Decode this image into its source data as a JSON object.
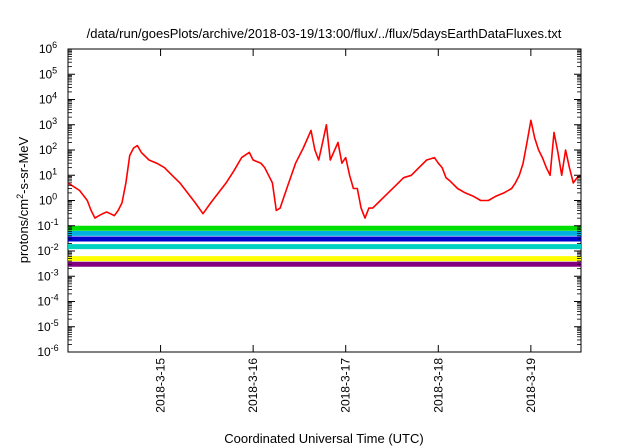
{
  "chart_data": {
    "type": "line",
    "title": "/data/run/goesPlots/archive/2018-03-19/13:00/flux/../flux/5daysEarthDataFluxes.txt",
    "xlabel": "Coordinated Universal Time (UTC)",
    "ylabel": {
      "base": "protons/cm",
      "sup": "2",
      "rest": "-s-sr-MeV"
    },
    "y_scale": "log",
    "ylim": [
      1e-06,
      1000000.0
    ],
    "y_ticks": [
      {
        "value": 1e-06,
        "exp": "-6"
      },
      {
        "value": 1e-05,
        "exp": "-5"
      },
      {
        "value": 0.0001,
        "exp": "-4"
      },
      {
        "value": 0.001,
        "exp": "-3"
      },
      {
        "value": 0.01,
        "exp": "-2"
      },
      {
        "value": 0.1,
        "exp": "-1"
      },
      {
        "value": 1,
        "exp": "0"
      },
      {
        "value": 10,
        "exp": "1"
      },
      {
        "value": 100,
        "exp": "2"
      },
      {
        "value": 1000,
        "exp": "3"
      },
      {
        "value": 10000,
        "exp": "4"
      },
      {
        "value": 100000,
        "exp": "5"
      },
      {
        "value": 1000000,
        "exp": "6"
      }
    ],
    "xlim": [
      "2018-03-14 00:00",
      "2018-03-19 13:00"
    ],
    "x_ticks": [
      "2018-3-15",
      "2018-3-16",
      "2018-3-17",
      "2018-3-18",
      "2018-3-19"
    ],
    "grid": false,
    "series": [
      {
        "color": "#ff0000",
        "x": [
          "2018-03-14 00:00",
          "2018-03-14 03:00",
          "2018-03-14 05:00",
          "2018-03-14 06:00",
          "2018-03-14 07:00",
          "2018-03-14 08:00",
          "2018-03-14 09:00",
          "2018-03-14 10:00",
          "2018-03-14 11:00",
          "2018-03-14 12:00",
          "2018-03-14 13:00",
          "2018-03-14 14:00",
          "2018-03-14 15:00",
          "2018-03-14 16:00",
          "2018-03-14 17:00",
          "2018-03-14 18:00",
          "2018-03-14 19:00",
          "2018-03-14 21:00",
          "2018-03-14 23:00",
          "2018-03-15 01:00",
          "2018-03-15 03:00",
          "2018-03-15 05:00",
          "2018-03-15 07:00",
          "2018-03-15 09:00",
          "2018-03-15 11:00",
          "2018-03-15 13:00",
          "2018-03-15 15:00",
          "2018-03-15 17:00",
          "2018-03-15 19:00",
          "2018-03-15 21:00",
          "2018-03-15 23:00",
          "2018-03-16 00:00",
          "2018-03-16 02:00",
          "2018-03-16 03:00",
          "2018-03-16 04:00",
          "2018-03-16 05:00",
          "2018-03-16 06:00",
          "2018-03-16 07:00",
          "2018-03-16 09:00",
          "2018-03-16 11:00",
          "2018-03-16 13:00",
          "2018-03-16 15:00",
          "2018-03-16 16:00",
          "2018-03-16 17:00",
          "2018-03-16 18:00",
          "2018-03-16 19:00",
          "2018-03-16 20:00",
          "2018-03-16 22:00",
          "2018-03-16 23:00",
          "2018-03-17 00:00",
          "2018-03-17 01:00",
          "2018-03-17 02:00",
          "2018-03-17 03:00",
          "2018-03-17 04:00",
          "2018-03-17 05:00",
          "2018-03-17 06:00",
          "2018-03-17 07:00",
          "2018-03-17 09:00",
          "2018-03-17 11:00",
          "2018-03-17 13:00",
          "2018-03-17 15:00",
          "2018-03-17 17:00",
          "2018-03-17 19:00",
          "2018-03-17 21:00",
          "2018-03-17 23:00",
          "2018-03-18 00:00",
          "2018-03-18 01:00",
          "2018-03-18 02:00",
          "2018-03-18 03:00",
          "2018-03-18 05:00",
          "2018-03-18 07:00",
          "2018-03-18 09:00",
          "2018-03-18 11:00",
          "2018-03-18 13:00",
          "2018-03-18 15:00",
          "2018-03-18 17:00",
          "2018-03-18 19:00",
          "2018-03-18 20:00",
          "2018-03-18 21:00",
          "2018-03-18 22:00",
          "2018-03-18 23:00",
          "2018-03-19 00:00",
          "2018-03-19 01:00",
          "2018-03-19 02:00",
          "2018-03-19 03:00",
          "2018-03-19 04:00",
          "2018-03-19 05:00",
          "2018-03-19 06:00",
          "2018-03-19 07:00",
          "2018-03-19 08:00",
          "2018-03-19 09:00",
          "2018-03-19 10:00",
          "2018-03-19 11:00",
          "2018-03-19 12:00",
          "2018-03-19 13:00"
        ],
        "y": [
          5,
          2.5,
          1,
          0.4,
          0.2,
          0.25,
          0.3,
          0.35,
          0.3,
          0.25,
          0.4,
          0.8,
          5,
          60,
          120,
          150,
          80,
          40,
          30,
          20,
          10,
          5,
          2,
          0.8,
          0.3,
          0.8,
          2,
          5,
          15,
          50,
          80,
          40,
          30,
          20,
          10,
          5,
          0.4,
          0.5,
          4,
          30,
          120,
          600,
          100,
          40,
          200,
          1000,
          40,
          200,
          30,
          50,
          10,
          3,
          3,
          0.5,
          0.2,
          0.5,
          0.5,
          1,
          2,
          4,
          8,
          10,
          20,
          40,
          50,
          30,
          20,
          8,
          6,
          3,
          2,
          1.5,
          1,
          1,
          1.5,
          2,
          3,
          5,
          10,
          30,
          200,
          1500,
          300,
          100,
          50,
          20,
          10,
          500,
          80,
          10,
          100,
          20,
          5,
          8,
          10
        ]
      },
      {
        "color": "#00e000",
        "x": [
          "2018-03-14 00:00",
          "2018-03-19 13:00"
        ],
        "y": [
          0.08,
          0.08
        ]
      },
      {
        "color": "#00b0e0",
        "x": [
          "2018-03-14 00:00",
          "2018-03-19 13:00"
        ],
        "y": [
          0.05,
          0.05
        ]
      },
      {
        "color": "#0000cc",
        "x": [
          "2018-03-14 00:00",
          "2018-03-19 13:00"
        ],
        "y": [
          0.03,
          0.03
        ]
      },
      {
        "color": "#00d0c0",
        "x": [
          "2018-03-14 00:00",
          "2018-03-19 13:00"
        ],
        "y": [
          0.015,
          0.015
        ]
      },
      {
        "color": "#ffff00",
        "x": [
          "2018-03-14 00:00",
          "2018-03-19 13:00"
        ],
        "y": [
          0.005,
          0.005
        ]
      },
      {
        "color": "#800080",
        "x": [
          "2018-03-14 00:00",
          "2018-03-19 13:00"
        ],
        "y": [
          0.003,
          0.003
        ]
      }
    ]
  }
}
